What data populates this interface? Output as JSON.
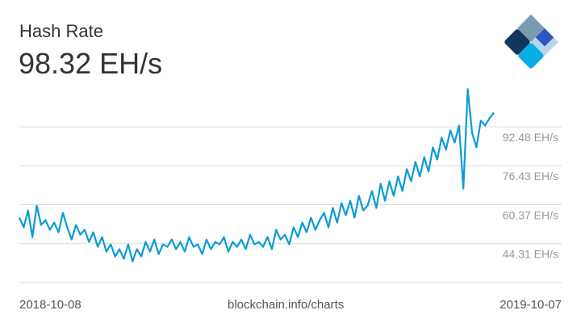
{
  "header": {
    "title": "Hash Rate",
    "current_value": "98.32 EH/s"
  },
  "footer": {
    "start_date": "2018-10-08",
    "source": "blockchain.info/charts",
    "end_date": "2019-10-07"
  },
  "colors": {
    "line": "#0a9bd7",
    "grid": "#d9d9d9",
    "tick_text": "#999999",
    "logo": [
      "#7a9cb0",
      "#123660",
      "#2f56c3",
      "#b2d7ea",
      "#07aee6"
    ]
  },
  "logo_icon": "blockchain-logo-icon",
  "chart_data": {
    "type": "line",
    "title": "Hash Rate",
    "xlabel": "",
    "ylabel": "EH/s",
    "x_range": [
      "2018-10-08",
      "2019-10-07"
    ],
    "ylim": [
      28.24,
      108.8
    ],
    "yticks": [
      44.31,
      60.37,
      76.43,
      92.48
    ],
    "ytick_labels": [
      "44.31 EH/s",
      "60.37 EH/s",
      "76.43 EH/s",
      "92.48 EH/s"
    ],
    "grid": true,
    "series": [
      {
        "name": "Hash Rate",
        "values": [
          55,
          51,
          58,
          47,
          60,
          52,
          54,
          50,
          53,
          49,
          57,
          51,
          46,
          52,
          48,
          50,
          45,
          49,
          43,
          47,
          41,
          44,
          39,
          42,
          38,
          44,
          37,
          42,
          39,
          45,
          41,
          46,
          40,
          44,
          43,
          46,
          42,
          45,
          41,
          47,
          43,
          44,
          40,
          46,
          42,
          45,
          44,
          47,
          41,
          45,
          43,
          46,
          42,
          48,
          44,
          45,
          43,
          47,
          42,
          50,
          46,
          48,
          44,
          51,
          47,
          53,
          49,
          55,
          50,
          54,
          57,
          51,
          59,
          53,
          61,
          56,
          62,
          55,
          64,
          58,
          60,
          66,
          59,
          69,
          62,
          70,
          64,
          72,
          66,
          75,
          70,
          78,
          72,
          80,
          74,
          84,
          79,
          88,
          83,
          91,
          86,
          93,
          67,
          108,
          90,
          84,
          95,
          93,
          96,
          98.32
        ]
      }
    ]
  }
}
